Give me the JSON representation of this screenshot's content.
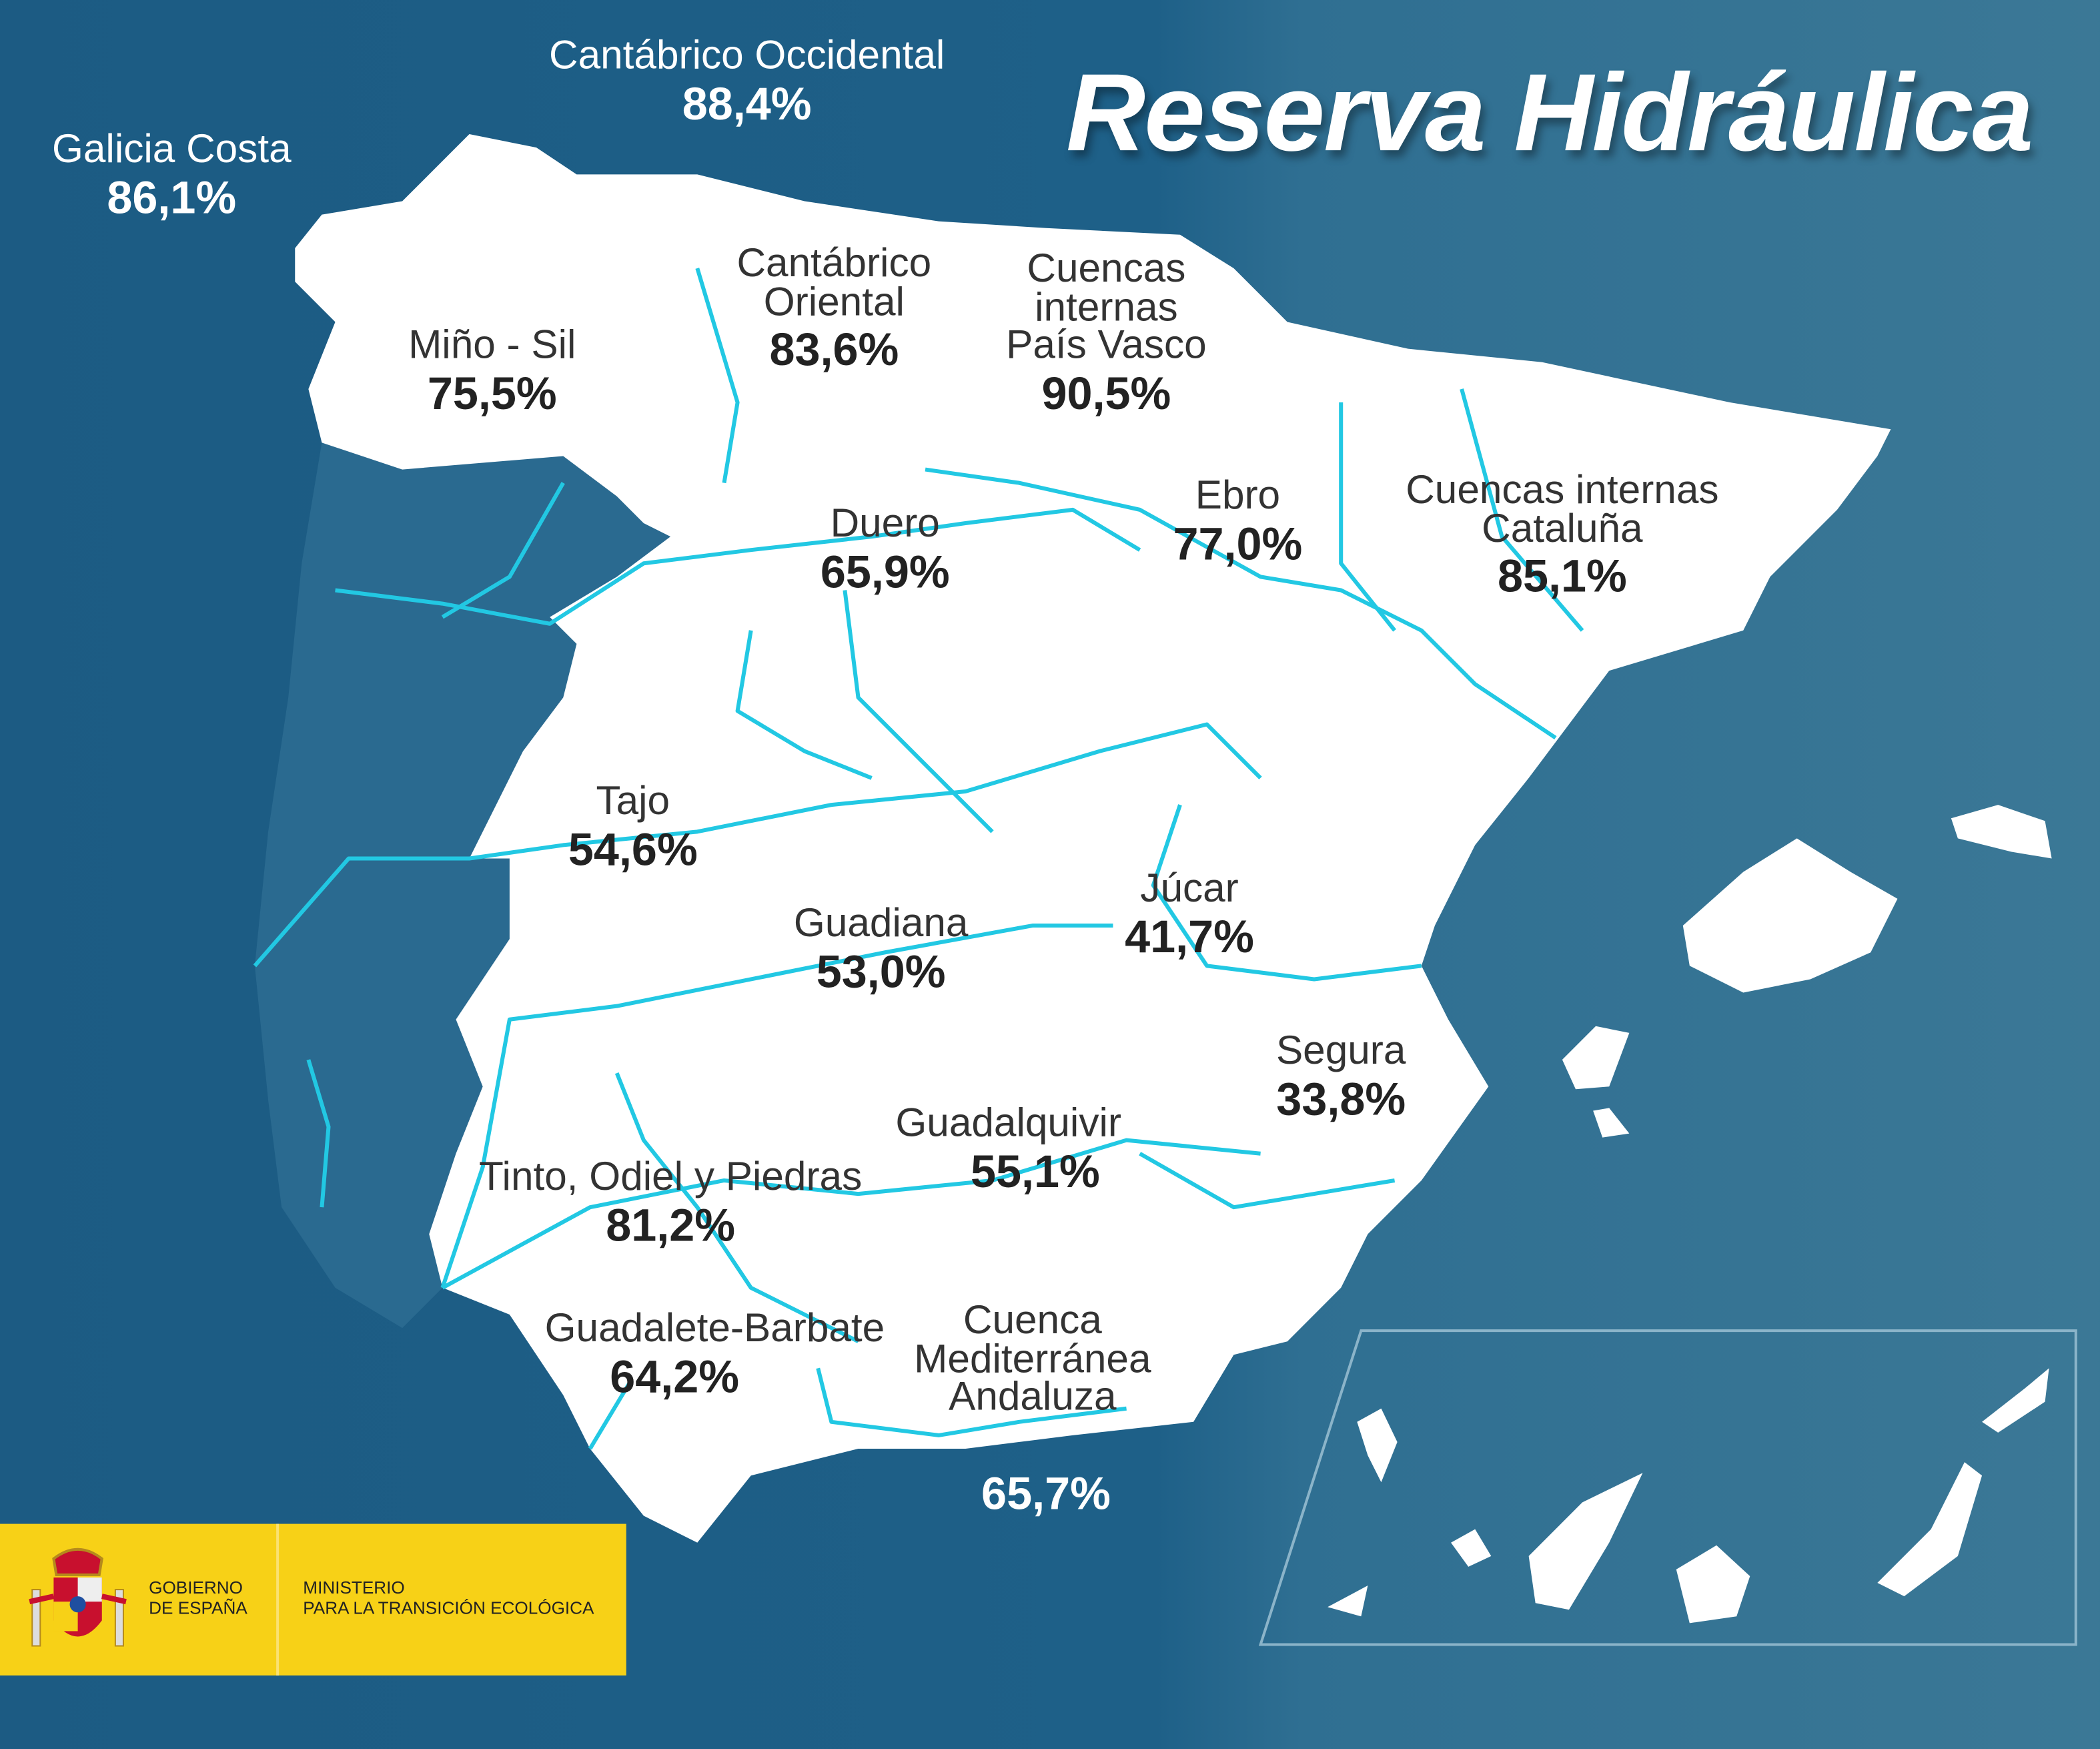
{
  "title": "Reserva Hidráulica",
  "colors": {
    "sea": "#1d5f86",
    "land": "#ffffff",
    "portugal": "#2a6a90",
    "rivers": "#22c8e3",
    "logo_bg": "#f7d117"
  },
  "basins": [
    {
      "name": "Galicia Costa",
      "value": "86,1%"
    },
    {
      "name": "Cantábrico Occidental",
      "value": "88,4%"
    },
    {
      "name": "Miño - Sil",
      "value": "75,5%"
    },
    {
      "name": "Cantábrico Oriental",
      "value": "83,6%"
    },
    {
      "name": "Cuencas internas País Vasco",
      "value": "90,5%"
    },
    {
      "name": "Duero",
      "value": "65,9%"
    },
    {
      "name": "Ebro",
      "value": "77,0%"
    },
    {
      "name": "Cuencas internas Cataluña",
      "value": "85,1%"
    },
    {
      "name": "Tajo",
      "value": "54,6%"
    },
    {
      "name": "Guadiana",
      "value": "53,0%"
    },
    {
      "name": "Júcar",
      "value": "41,7%"
    },
    {
      "name": "Segura",
      "value": "33,8%"
    },
    {
      "name": "Guadalquivir",
      "value": "55,1%"
    },
    {
      "name": "Tinto, Odiel y Piedras",
      "value": "81,2%"
    },
    {
      "name": "Guadalete-Barbate",
      "value": "64,2%"
    },
    {
      "name": "Cuenca Mediterránea Andaluza",
      "value": "65,7%"
    }
  ],
  "logo": {
    "gov_line1": "GOBIERNO",
    "gov_line2": "DE ESPAÑA",
    "min_line1": "MINISTERIO",
    "min_line2": "PARA LA TRANSICIÓN ECOLÓGICA",
    "emblem": "coat-of-arms-of-spain"
  }
}
